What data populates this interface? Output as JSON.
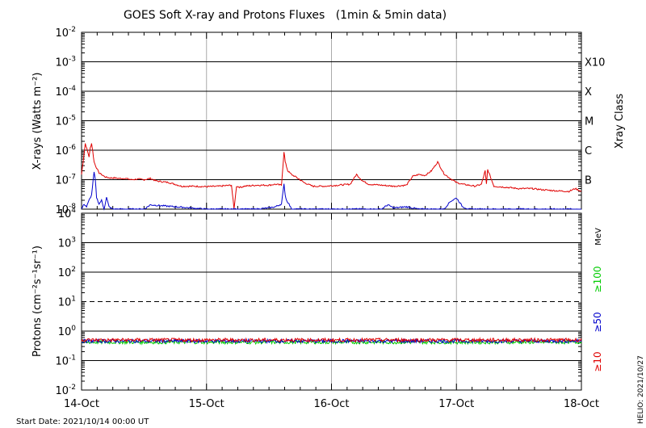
{
  "title": "GOES Soft X-ray and Protons Fluxes   (1min & 5min data)",
  "start_label": "Start Date: 2021/10/14 00:00 UT",
  "helio_label": "HELIO: 2021/10/27",
  "chart_data": [
    {
      "type": "line",
      "panel": "xray",
      "ylabel": "X-rays (Watts m⁻²)",
      "yscale": "log",
      "ylim": [
        1e-08,
        0.01
      ],
      "yticks": [
        {
          "base": "10",
          "exp": "-2",
          "value": 0.01
        },
        {
          "base": "10",
          "exp": "-3",
          "value": 0.001
        },
        {
          "base": "10",
          "exp": "-4",
          "value": 0.0001
        },
        {
          "base": "10",
          "exp": "-5",
          "value": 1e-05
        },
        {
          "base": "10",
          "exp": "-6",
          "value": 1e-06
        },
        {
          "base": "10",
          "exp": "-7",
          "value": 1e-07
        },
        {
          "base": "10",
          "exp": "-8",
          "value": 1e-08
        }
      ],
      "right_axis_label": "Xray Class",
      "classes": [
        {
          "label": "X10",
          "value": 0.001
        },
        {
          "label": "X",
          "value": 0.0001
        },
        {
          "label": "M",
          "value": 1e-05
        },
        {
          "label": "C",
          "value": 1e-06
        },
        {
          "label": "B",
          "value": 1e-07
        }
      ],
      "xlim": [
        0,
        4
      ],
      "grid": true,
      "series": [
        {
          "color": "#e00000",
          "x": [
            0.0,
            0.03,
            0.06,
            0.07,
            0.08,
            0.09,
            0.1,
            0.12,
            0.14,
            0.16,
            0.18,
            0.2,
            0.23,
            0.26,
            0.3,
            0.35,
            0.4,
            0.45,
            0.5,
            0.55,
            0.6,
            0.7,
            0.8,
            0.9,
            1.0,
            1.1,
            1.2,
            1.22,
            1.24,
            1.27,
            1.3,
            1.4,
            1.5,
            1.55,
            1.6,
            1.62,
            1.63,
            1.64,
            1.65,
            1.68,
            1.72,
            1.78,
            1.85,
            1.95,
            2.05,
            2.15,
            2.2,
            2.25,
            2.3,
            2.4,
            2.5,
            2.6,
            2.65,
            2.7,
            2.75,
            2.8,
            2.85,
            2.9,
            2.95,
            3.0,
            3.05,
            3.1,
            3.15,
            3.2,
            3.23,
            3.24,
            3.25,
            3.3,
            3.4,
            3.5,
            3.6,
            3.7,
            3.8,
            3.9,
            3.95,
            4.0
          ],
          "y": [
            1.5e-07,
            1.7e-06,
            6e-07,
            1.2e-06,
            1.7e-06,
            9e-07,
            4e-07,
            2.5e-07,
            1.7e-07,
            1.5e-07,
            1.3e-07,
            1.2e-07,
            1.15e-07,
            1.15e-07,
            1.1e-07,
            1.1e-07,
            1e-07,
            1.05e-07,
            1e-07,
            1.1e-07,
            9e-08,
            8e-08,
            6e-08,
            6e-08,
            5.8e-08,
            6e-08,
            6.5e-08,
            1e-08,
            6e-08,
            5.5e-08,
            6e-08,
            6.5e-08,
            6.5e-08,
            7e-08,
            6.5e-08,
            9e-07,
            4e-07,
            2.8e-07,
            2e-07,
            1.5e-07,
            1.2e-07,
            8e-08,
            6e-08,
            6e-08,
            6.5e-08,
            7e-08,
            1.5e-07,
            9e-08,
            7e-08,
            6.5e-08,
            6e-08,
            6.5e-08,
            1.3e-07,
            1.5e-07,
            1.4e-07,
            2e-07,
            4e-07,
            1.6e-07,
            1.1e-07,
            8e-08,
            7e-08,
            6.5e-08,
            6e-08,
            7e-08,
            2e-07,
            7e-08,
            2.2e-07,
            6e-08,
            5.5e-08,
            5e-08,
            5e-08,
            4.5e-08,
            4.2e-08,
            4e-08,
            5e-08,
            4e-08
          ]
        },
        {
          "color": "#0000cc",
          "x": [
            0.0,
            0.02,
            0.04,
            0.06,
            0.08,
            0.1,
            0.11,
            0.12,
            0.14,
            0.16,
            0.18,
            0.2,
            0.22,
            0.25,
            0.3,
            0.5,
            0.55,
            1.0,
            1.2,
            1.4,
            1.5,
            1.55,
            1.6,
            1.62,
            1.63,
            1.64,
            1.66,
            1.68,
            1.72,
            1.75,
            2.0,
            2.4,
            2.45,
            2.5,
            2.6,
            2.7,
            2.8,
            2.9,
            2.95,
            3.0,
            3.05,
            3.1,
            3.2,
            3.3,
            3.5,
            4.0
          ],
          "y": [
            1e-08,
            1.5e-08,
            1.2e-08,
            2e-08,
            3e-08,
            1.8e-07,
            1e-07,
            2.5e-08,
            1.5e-08,
            2e-08,
            1e-08,
            2.5e-08,
            1.2e-08,
            1e-08,
            1e-08,
            1e-08,
            1.4e-08,
            1e-08,
            1e-08,
            1e-08,
            1.1e-08,
            1.2e-08,
            1.5e-08,
            7e-08,
            3e-08,
            2e-08,
            1.5e-08,
            1e-08,
            1e-08,
            1e-08,
            1e-08,
            1e-08,
            1.4e-08,
            1.1e-08,
            1.2e-08,
            1e-08,
            1e-08,
            1e-08,
            1.8e-08,
            2.4e-08,
            1.2e-08,
            1e-08,
            1e-08,
            1e-08,
            1e-08,
            1e-08
          ]
        }
      ]
    },
    {
      "type": "line",
      "panel": "protons",
      "ylabel": "Protons (cm⁻²s⁻¹sr⁻¹)",
      "yscale": "log",
      "ylim": [
        0.01,
        10000
      ],
      "yticks": [
        {
          "base": "10",
          "exp": "4",
          "value": 10000
        },
        {
          "base": "10",
          "exp": "3",
          "value": 1000
        },
        {
          "base": "10",
          "exp": "2",
          "value": 100
        },
        {
          "base": "10",
          "exp": "1",
          "value": 10
        },
        {
          "base": "10",
          "exp": "0",
          "value": 1
        },
        {
          "base": "10",
          "exp": "-1",
          "value": 0.1
        },
        {
          "base": "10",
          "exp": "-2",
          "value": 0.01
        }
      ],
      "threshold": 10,
      "unit": "MeV",
      "xlim": [
        0,
        4
      ],
      "grid": true,
      "series": [
        {
          "name": "≥10",
          "color": "#e00000",
          "level": 0.5
        },
        {
          "name": "≥50",
          "color": "#0000cc",
          "level": 0.46
        },
        {
          "name": "≥100",
          "color": "#00cc00",
          "level": 0.42
        }
      ]
    }
  ],
  "x_ticks": [
    "14-Oct",
    "15-Oct",
    "16-Oct",
    "17-Oct",
    "18-Oct"
  ]
}
